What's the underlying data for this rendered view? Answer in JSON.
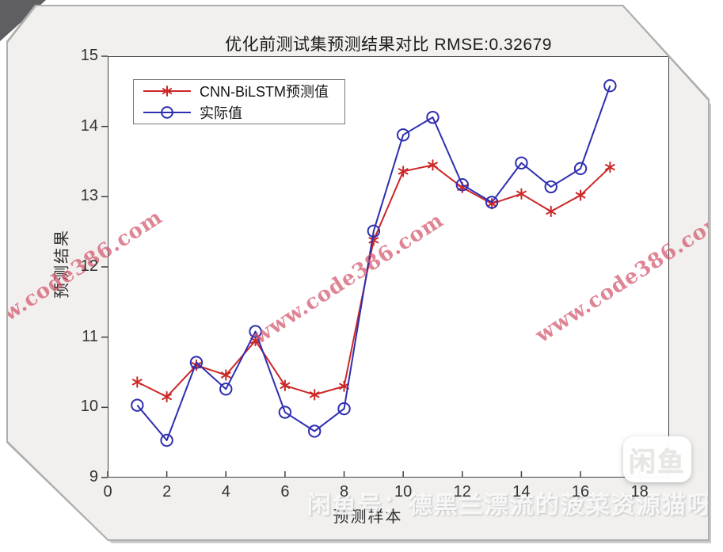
{
  "chart_data": {
    "type": "line",
    "title": "优化前测试集预测结果对比 RMSE:0.32679",
    "rmse": 0.32679,
    "xlabel": "预测样本",
    "ylabel": "预测结果",
    "xlim": [
      0,
      19
    ],
    "ylim": [
      9,
      15
    ],
    "x_ticks": [
      0,
      2,
      4,
      6,
      8,
      10,
      12,
      14,
      16,
      18
    ],
    "y_ticks": [
      9,
      10,
      11,
      12,
      13,
      14,
      15
    ],
    "grid": false,
    "legend_position": "top-left",
    "x": [
      1,
      2,
      3,
      4,
      5,
      6,
      7,
      8,
      9,
      10,
      11,
      12,
      13,
      14,
      15,
      16,
      17
    ],
    "series": [
      {
        "name": "CNN-BiLSTM预测值",
        "color": "#cc2727",
        "marker": "asterisk",
        "values": [
          10.36,
          10.15,
          10.6,
          10.46,
          10.95,
          10.31,
          10.18,
          10.3,
          12.38,
          13.36,
          13.45,
          13.13,
          12.9,
          13.04,
          12.79,
          13.02,
          13.42
        ]
      },
      {
        "name": "实际值",
        "color": "#2e2eb0",
        "marker": "circle",
        "values": [
          10.03,
          9.53,
          10.64,
          10.26,
          11.08,
          9.93,
          9.66,
          9.98,
          12.51,
          13.88,
          14.13,
          13.17,
          12.92,
          13.48,
          13.14,
          13.4,
          14.58
        ]
      }
    ]
  },
  "watermark": {
    "text": "www.code386.com",
    "color": "#d4566c"
  },
  "overlay": {
    "seller_text": "闲鱼号：德黑兰漂流的菠菜资源猫呀",
    "badge_text": "闲鱼"
  }
}
